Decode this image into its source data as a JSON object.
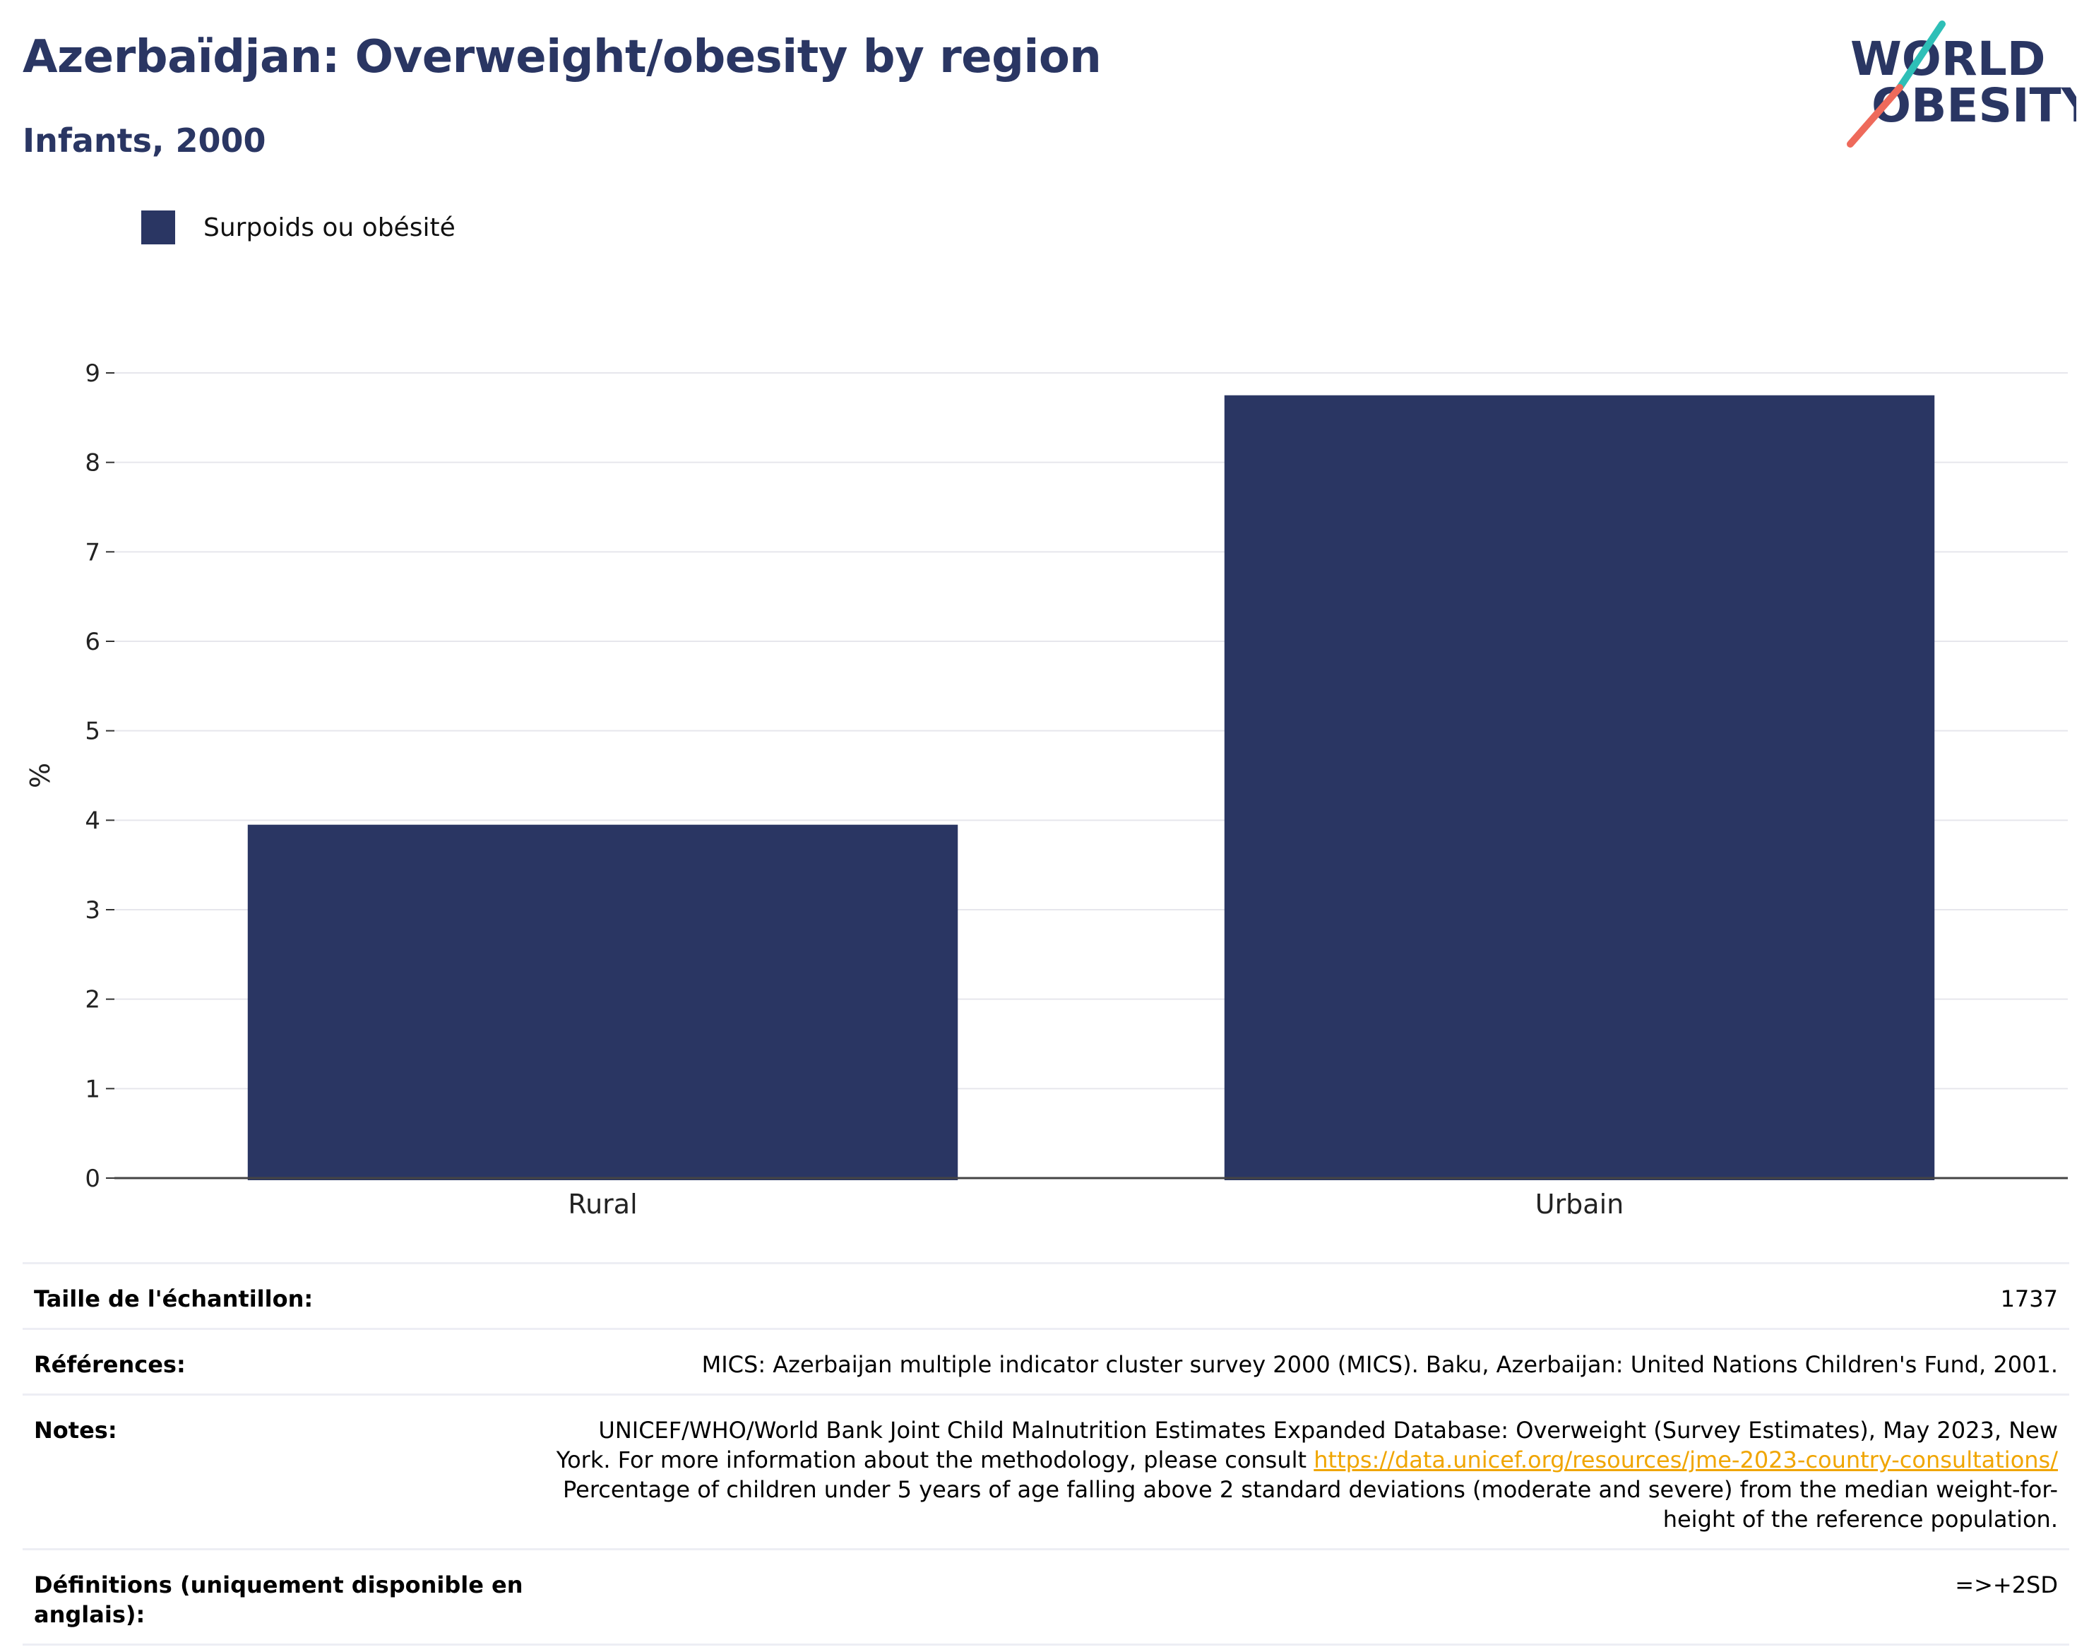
{
  "header": {
    "title": "Azerbaïdjan: Overweight/obesity by region",
    "subtitle": "Infants, 2000"
  },
  "logo": {
    "line1": "WORLD",
    "line2": "OBESITY"
  },
  "colors": {
    "bar": "#2a3663",
    "title": "#2a3663",
    "grid": "#e6e6ec",
    "link": "#f0a500",
    "logo_teal": "#2ebfb7",
    "logo_coral": "#ee6a5b"
  },
  "chart_data": {
    "type": "bar",
    "categories": [
      "Rural",
      "Urbain"
    ],
    "series": [
      {
        "name": "Surpoids ou obésité",
        "values": [
          3.95,
          8.75
        ]
      }
    ],
    "ylabel": "%",
    "ylim": [
      0,
      9
    ],
    "yticks": [
      0,
      1,
      2,
      3,
      4,
      5,
      6,
      7,
      8,
      9
    ],
    "grid": true,
    "legend": "top-left"
  },
  "info": {
    "sample_key": "Taille de l'échantillon:",
    "sample_val": "1737",
    "refs_key": "Références:",
    "refs_val": "MICS: Azerbaijan multiple indicator cluster survey 2000 (MICS). Baku, Azerbaijan: United Nations Children's Fund, 2001.",
    "notes_key": "Notes:",
    "notes_val_1": "UNICEF/WHO/World Bank Joint Child Malnutrition Estimates Expanded Database: Overweight (Survey Estimates), May 2023, New York. For more information about the methodology, please consult",
    "notes_link": "https://data.unicef.org/resources/jme-2023-country-consultations/",
    "notes_val_2": "Percentage of children under 5 years of age falling above 2 standard deviations (moderate and severe) from the median weight-for-height of the reference population.",
    "defs_key": "Définitions (uniquement disponible en anglais):",
    "defs_val": "=>+2SD"
  }
}
